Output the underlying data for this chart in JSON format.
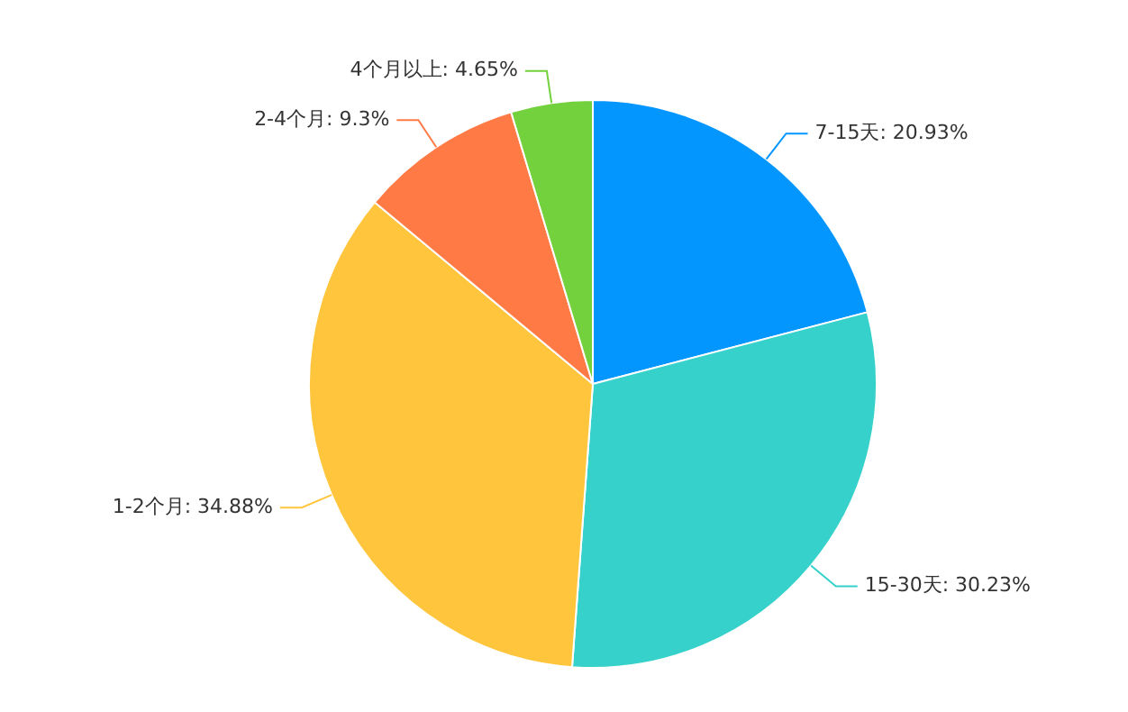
{
  "chart_data": {
    "type": "pie",
    "categories": [
      "7-15天",
      "15-30天",
      "1-2个月",
      "2-4个月",
      "4个月以上"
    ],
    "values": [
      20.93,
      30.23,
      34.88,
      9.3,
      4.65
    ],
    "value_labels": [
      ": 20.93%",
      ": 30.23%",
      ": 34.88%",
      ": 9.3%",
      ": 4.65%"
    ],
    "colors": [
      "#0396ff",
      "#36d1cb",
      "#ffc53d",
      "#ff7a45",
      "#73d13d"
    ],
    "legend": false
  }
}
